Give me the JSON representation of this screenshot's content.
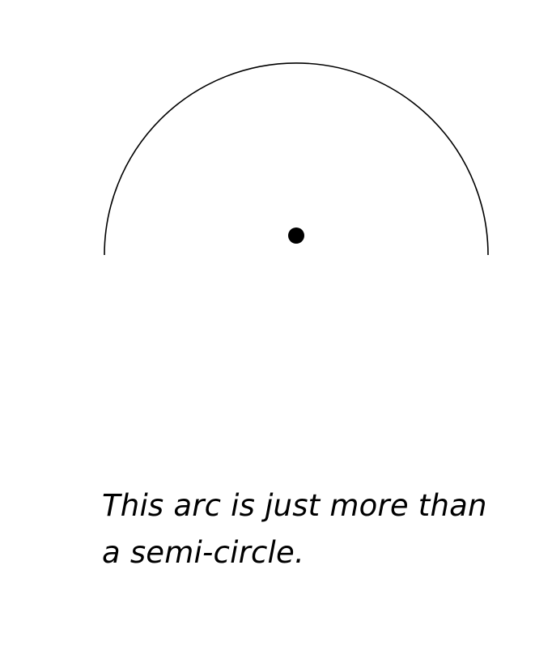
{
  "diagram": {
    "stroke_color": "#000000",
    "center_dot_color": "#000000",
    "caption_lines": [
      "This arc is just more than",
      "a semi-circle."
    ]
  }
}
